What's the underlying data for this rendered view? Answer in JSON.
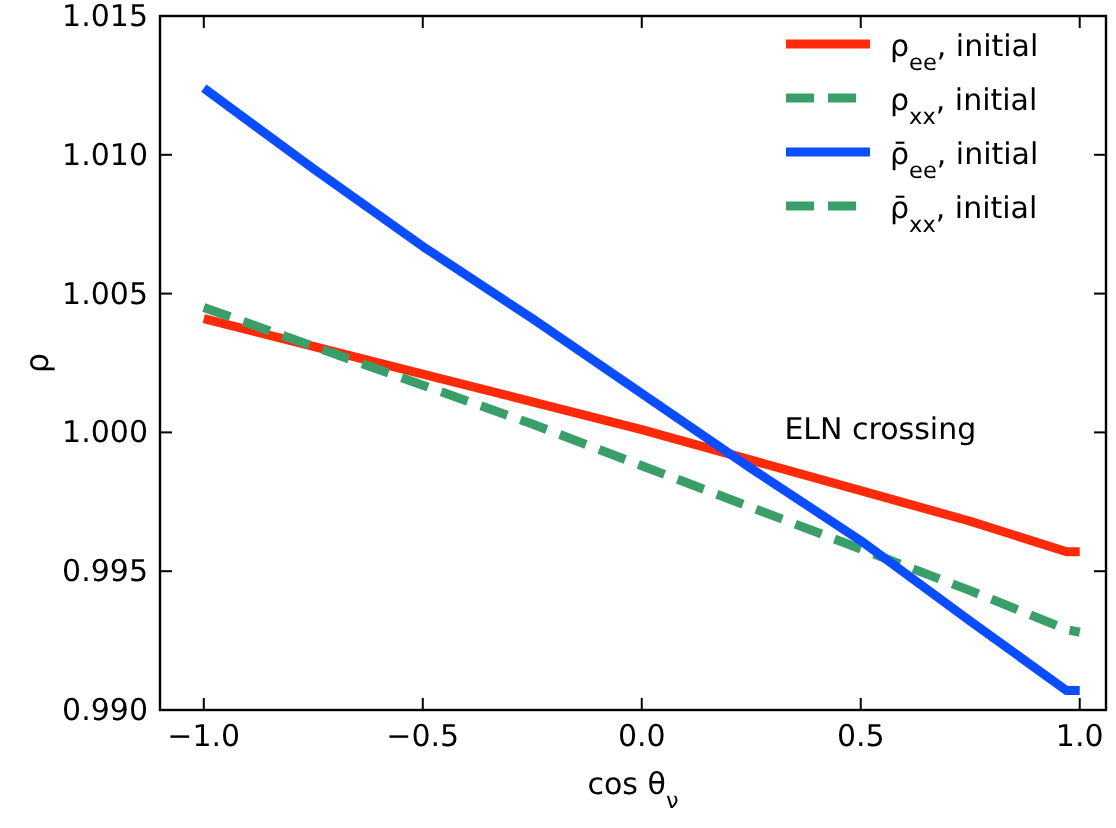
{
  "chart_data": {
    "type": "line",
    "xlabel": "cos θ$_{ν}$",
    "ylabel": "ρ",
    "xlim": [
      -1.1,
      1.06
    ],
    "xticks": [
      {
        "value": -1,
        "label": "−1.0"
      },
      {
        "value": -0.5,
        "label": "−0.5"
      },
      {
        "value": 0,
        "label": "0.0"
      },
      {
        "value": 0.5,
        "label": "0.5"
      },
      {
        "value": 1,
        "label": "1.0"
      }
    ],
    "ylim": [
      0.99,
      1.015
    ],
    "yticks": [
      {
        "value": 0.99,
        "label": "0.990"
      },
      {
        "value": 0.995,
        "label": "0.995"
      },
      {
        "value": 1,
        "label": "1.000"
      },
      {
        "value": 1.005,
        "label": "1.005"
      },
      {
        "value": 1.01,
        "label": "1.010"
      },
      {
        "value": 1.015,
        "label": "1.015"
      }
    ],
    "grid": false,
    "legend": "top right",
    "x": [
      -1,
      -0.75,
      -0.5,
      -0.25,
      0,
      0.25,
      0.5,
      0.75,
      0.97,
      1
    ],
    "series": [
      {
        "name": "ρ$_{ee}$, initial",
        "color": "#ff2a0a",
        "line_style": "solid",
        "values": [
          1.0041,
          1.0031,
          1.0021,
          1.0011,
          1.0001,
          0.999,
          0.9979,
          0.9968,
          0.9957,
          0.9957
        ]
      },
      {
        "name": "ρ$_{xx}$, initial",
        "color": "#3a9e68",
        "line_style": "dashed",
        "values": [
          1.0045,
          1.0031,
          1.0017,
          1.0003,
          0.9988,
          0.9973,
          0.9958,
          0.9943,
          0.9929,
          0.9928
        ]
      },
      {
        "name": "ρ̄$_{ee}$, initial",
        "color": "#0a4cff",
        "line_style": "solid",
        "values": [
          1.0124,
          1.0095,
          1.0067,
          1.0041,
          1.0014,
          0.9987,
          0.9961,
          0.9932,
          0.9907,
          0.9907
        ]
      },
      {
        "name": "ρ̄$_{xx}$, initial",
        "color": "#3a9e68",
        "line_style": "dashed",
        "values": [
          null,
          null,
          null,
          null,
          null,
          null,
          null,
          null,
          null,
          null
        ]
      }
    ],
    "annotations": [
      {
        "text": "ELN crossing",
        "x": 0.28,
        "y": 0.9989
      }
    ]
  }
}
